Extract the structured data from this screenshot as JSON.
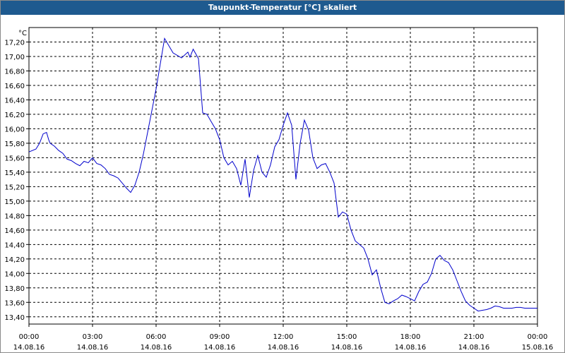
{
  "window": {
    "title": "Taupunkt-Temperatur [°C] skaliert"
  },
  "chart_data": {
    "type": "line",
    "title": "Taupunkt-Temperatur [°C] skaliert",
    "ylabel": "°C",
    "xlabel": "",
    "grid": true,
    "ylim": [
      13.3,
      17.4
    ],
    "xlim": [
      0,
      24
    ],
    "y_ticks": [
      "13,40",
      "13,60",
      "13,80",
      "14,00",
      "14,20",
      "14,40",
      "14,60",
      "14,80",
      "15,00",
      "15,20",
      "15,40",
      "15,60",
      "15,80",
      "16,00",
      "16,20",
      "16,40",
      "16,60",
      "16,80",
      "17,00",
      "17,20"
    ],
    "y_tick_values": [
      13.4,
      13.6,
      13.8,
      14.0,
      14.2,
      14.4,
      14.6,
      14.8,
      15.0,
      15.2,
      15.4,
      15.6,
      15.8,
      16.0,
      16.2,
      16.4,
      16.6,
      16.8,
      17.0,
      17.2
    ],
    "x_ticks": [
      {
        "time": "00:00",
        "date": "14.08.16",
        "hour": 0
      },
      {
        "time": "03:00",
        "date": "14.08.16",
        "hour": 3
      },
      {
        "time": "06:00",
        "date": "14.08.16",
        "hour": 6
      },
      {
        "time": "09:00",
        "date": "14.08.16",
        "hour": 9
      },
      {
        "time": "12:00",
        "date": "14.08.16",
        "hour": 12
      },
      {
        "time": "15:00",
        "date": "14.08.16",
        "hour": 15
      },
      {
        "time": "18:00",
        "date": "14.08.16",
        "hour": 18
      },
      {
        "time": "21:00",
        "date": "14.08.16",
        "hour": 21
      },
      {
        "time": "00:00",
        "date": "15.08.16",
        "hour": 24
      }
    ],
    "series": [
      {
        "color": "#0000cc",
        "x": [
          0,
          0.33,
          0.5,
          0.67,
          0.83,
          0.93,
          1.0,
          1.2,
          1.4,
          1.6,
          1.8,
          2.0,
          2.2,
          2.4,
          2.6,
          2.8,
          3.0,
          3.2,
          3.4,
          3.6,
          3.8,
          4.0,
          4.2,
          4.4,
          4.6,
          4.8,
          5.0,
          5.2,
          5.4,
          5.6,
          5.8,
          6.0,
          6.2,
          6.4,
          6.8,
          7.2,
          7.5,
          7.6,
          7.75,
          8.0,
          8.2,
          8.4,
          8.6,
          8.8,
          9.0,
          9.2,
          9.4,
          9.6,
          9.8,
          10.0,
          10.2,
          10.4,
          10.6,
          10.8,
          11.0,
          11.2,
          11.4,
          11.6,
          11.8,
          12.0,
          12.2,
          12.4,
          12.6,
          12.8,
          13.0,
          13.2,
          13.4,
          13.6,
          13.8,
          14.0,
          14.2,
          14.4,
          14.6,
          14.8,
          15.0,
          15.2,
          15.4,
          15.6,
          15.8,
          16.0,
          16.2,
          16.4,
          16.6,
          16.8,
          17.0,
          17.2,
          17.4,
          17.6,
          17.8,
          18.0,
          18.2,
          18.4,
          18.6,
          18.8,
          19.0,
          19.2,
          19.4,
          19.6,
          19.8,
          20.0,
          20.2,
          20.4,
          20.6,
          20.8,
          21.0,
          21.2,
          21.4,
          21.6,
          21.8,
          22.0,
          22.2,
          22.4,
          22.6,
          22.8,
          23.0,
          23.2,
          23.4,
          23.6,
          23.8,
          24.0
        ],
        "y": [
          15.68,
          15.72,
          15.8,
          15.93,
          15.95,
          15.85,
          15.8,
          15.76,
          15.7,
          15.66,
          15.58,
          15.56,
          15.52,
          15.49,
          15.55,
          15.53,
          15.6,
          15.52,
          15.5,
          15.45,
          15.37,
          15.35,
          15.32,
          15.25,
          15.18,
          15.12,
          15.22,
          15.4,
          15.65,
          15.95,
          16.25,
          16.55,
          16.9,
          17.25,
          17.05,
          16.98,
          17.06,
          16.99,
          17.1,
          16.97,
          16.22,
          16.2,
          16.1,
          16.0,
          15.85,
          15.6,
          15.5,
          15.55,
          15.45,
          15.22,
          15.58,
          15.05,
          15.42,
          15.63,
          15.4,
          15.33,
          15.5,
          15.75,
          15.85,
          16.05,
          16.22,
          16.05,
          15.3,
          15.8,
          16.12,
          15.98,
          15.6,
          15.45,
          15.5,
          15.52,
          15.4,
          15.25,
          14.78,
          14.85,
          14.82,
          14.6,
          14.45,
          14.4,
          14.35,
          14.2,
          13.98,
          14.05,
          13.8,
          13.6,
          13.58,
          13.62,
          13.65,
          13.7,
          13.68,
          13.65,
          13.62,
          13.75,
          13.85,
          13.88,
          14.0,
          14.2,
          14.25,
          14.18,
          14.15,
          14.05,
          13.9,
          13.75,
          13.62,
          13.56,
          13.52,
          13.48,
          13.49,
          13.5,
          13.52,
          13.55,
          13.54,
          13.52,
          13.52,
          13.52,
          13.53,
          13.53,
          13.52,
          13.52,
          13.52,
          13.52
        ]
      }
    ]
  }
}
